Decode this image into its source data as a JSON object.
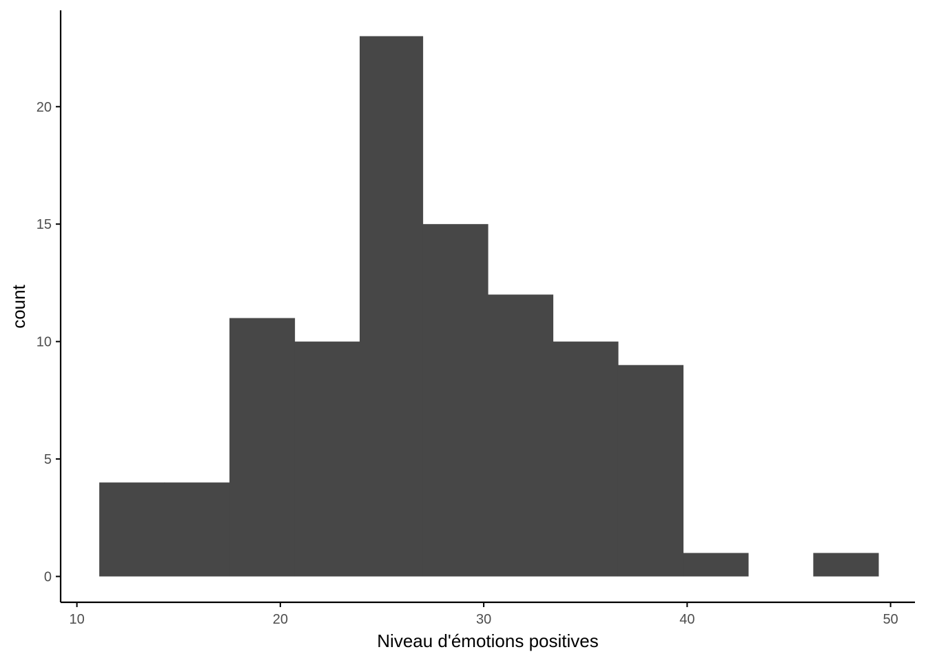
{
  "chart_data": {
    "type": "bar",
    "subtype": "histogram",
    "title": "",
    "xlabel": "Niveau d'émotions positives",
    "ylabel": "count",
    "xlim": [
      9.2,
      51.2
    ],
    "ylim": [
      -1.1,
      24.1
    ],
    "xticks": [
      10,
      20,
      30,
      40,
      50
    ],
    "yticks": [
      0,
      5,
      10,
      15,
      20
    ],
    "grid": false,
    "legend": "none",
    "bar_color": "#474747",
    "bins": [
      {
        "x0": 11.1,
        "x1": 14.3,
        "count": 4
      },
      {
        "x0": 14.3,
        "x1": 17.5,
        "count": 4
      },
      {
        "x0": 17.5,
        "x1": 20.7,
        "count": 11
      },
      {
        "x0": 20.7,
        "x1": 23.9,
        "count": 10
      },
      {
        "x0": 23.9,
        "x1": 27.0,
        "count": 23
      },
      {
        "x0": 27.0,
        "x1": 30.2,
        "count": 15
      },
      {
        "x0": 30.2,
        "x1": 33.4,
        "count": 12
      },
      {
        "x0": 33.4,
        "x1": 36.6,
        "count": 10
      },
      {
        "x0": 36.6,
        "x1": 39.8,
        "count": 9
      },
      {
        "x0": 39.8,
        "x1": 43.0,
        "count": 1
      },
      {
        "x0": 43.0,
        "x1": 46.2,
        "count": 0
      },
      {
        "x0": 46.2,
        "x1": 49.4,
        "count": 1
      }
    ]
  }
}
